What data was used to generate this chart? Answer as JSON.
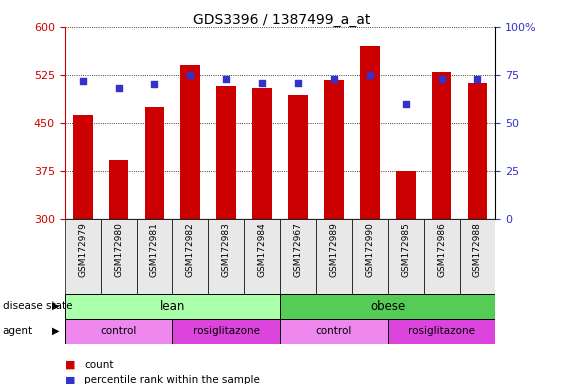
{
  "title": "GDS3396 / 1387499_a_at",
  "samples": [
    "GSM172979",
    "GSM172980",
    "GSM172981",
    "GSM172982",
    "GSM172983",
    "GSM172984",
    "GSM172967",
    "GSM172989",
    "GSM172990",
    "GSM172985",
    "GSM172986",
    "GSM172988"
  ],
  "bar_values": [
    463,
    392,
    475,
    540,
    507,
    505,
    493,
    517,
    570,
    375,
    530,
    513
  ],
  "percentile_values": [
    72,
    68,
    70,
    75,
    73,
    71,
    71,
    73,
    75,
    60,
    73,
    73
  ],
  "y_min": 300,
  "y_max": 600,
  "y_ticks": [
    300,
    375,
    450,
    525,
    600
  ],
  "right_y_ticks": [
    0,
    25,
    50,
    75,
    100
  ],
  "right_y_labels": [
    "0",
    "25",
    "50",
    "75",
    "100%"
  ],
  "bar_color": "#cc0000",
  "dot_color": "#3333cc",
  "bg_color": "#ffffff",
  "disease_state_lean_color": "#aaffaa",
  "disease_state_obese_color": "#55cc55",
  "agent_control_color": "#ee88ee",
  "agent_rosi_color": "#dd44dd",
  "lean_count": 6,
  "obese_count": 6,
  "lean_ctrl_count": 3,
  "lean_rosi_count": 3,
  "obese_ctrl_count": 3,
  "obese_rosi_count": 3
}
